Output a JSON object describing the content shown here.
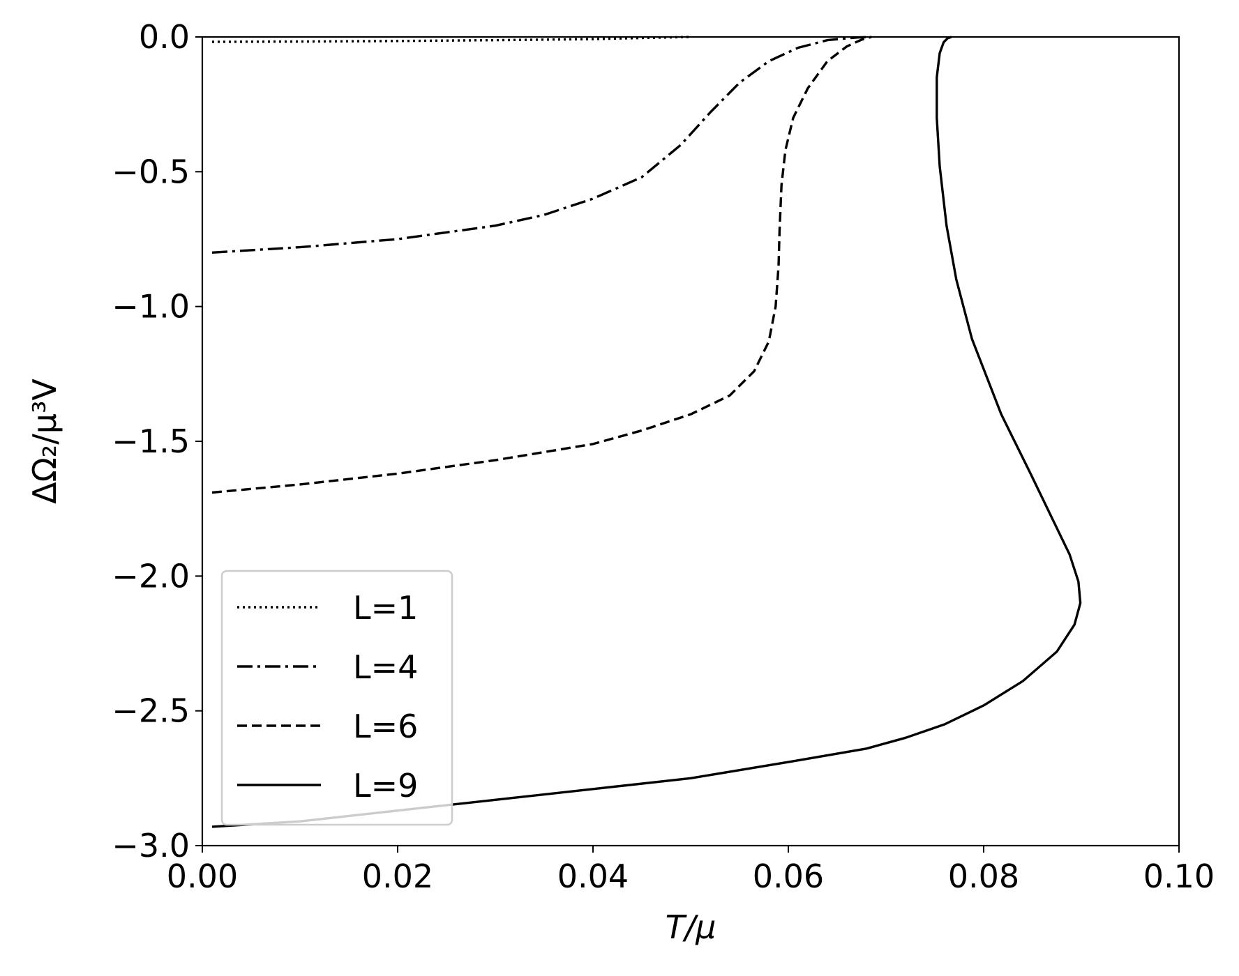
{
  "chart_data": {
    "type": "line",
    "xlabel": "T/μ",
    "ylabel": "ΔΩ₂/μ³V",
    "xlim": [
      0.0,
      0.1
    ],
    "ylim": [
      -3.0,
      0.0
    ],
    "xticks": [
      "0.00",
      "0.02",
      "0.04",
      "0.06",
      "0.08",
      "0.10"
    ],
    "yticks": [
      "0.0",
      "−0.5",
      "−1.0",
      "−1.5",
      "−2.0",
      "−2.5",
      "−3.0"
    ],
    "grid": false,
    "legend_position": "lower-left",
    "series": [
      {
        "name": "L=1",
        "style": "dotted",
        "color": "#000000",
        "x": [
          0.001,
          0.01,
          0.02,
          0.03,
          0.04,
          0.045,
          0.05
        ],
        "y": [
          -0.018,
          -0.017,
          -0.015,
          -0.012,
          -0.008,
          -0.004,
          0.0
        ]
      },
      {
        "name": "L=4",
        "style": "dashdot",
        "color": "#000000",
        "x": [
          0.001,
          0.01,
          0.02,
          0.03,
          0.035,
          0.04,
          0.045,
          0.049,
          0.052,
          0.055,
          0.058,
          0.061,
          0.064,
          0.067,
          0.0685
        ],
        "y": [
          -0.8,
          -0.78,
          -0.75,
          -0.7,
          -0.66,
          -0.6,
          -0.52,
          -0.4,
          -0.28,
          -0.17,
          -0.09,
          -0.04,
          -0.012,
          -0.002,
          0.0
        ]
      },
      {
        "name": "L=6",
        "style": "dashed",
        "color": "#000000",
        "x": [
          0.001,
          0.01,
          0.02,
          0.03,
          0.04,
          0.045,
          0.05,
          0.054,
          0.0565,
          0.058,
          0.0587,
          0.059,
          0.0591,
          0.0593,
          0.0597,
          0.0605,
          0.062,
          0.064,
          0.066,
          0.0675,
          0.0685
        ],
        "y": [
          -1.69,
          -1.66,
          -1.62,
          -1.57,
          -1.51,
          -1.46,
          -1.4,
          -1.33,
          -1.24,
          -1.13,
          -1.0,
          -0.85,
          -0.72,
          -0.55,
          -0.42,
          -0.3,
          -0.19,
          -0.09,
          -0.035,
          -0.01,
          0.0
        ]
      },
      {
        "name": "L=9",
        "style": "solid",
        "color": "#000000",
        "x": [
          0.001,
          0.01,
          0.02,
          0.03,
          0.04,
          0.05,
          0.06,
          0.068,
          0.072,
          0.076,
          0.08,
          0.084,
          0.0875,
          0.0893,
          0.0899,
          0.0897,
          0.0888,
          0.0872,
          0.0848,
          0.0818,
          0.0788,
          0.0772,
          0.0762,
          0.0755,
          0.0752,
          0.0752,
          0.0755,
          0.0759,
          0.0763,
          0.0767
        ],
        "y": [
          -2.93,
          -2.91,
          -2.87,
          -2.83,
          -2.79,
          -2.75,
          -2.69,
          -2.64,
          -2.6,
          -2.55,
          -2.48,
          -2.39,
          -2.28,
          -2.18,
          -2.1,
          -2.02,
          -1.92,
          -1.8,
          -1.62,
          -1.4,
          -1.12,
          -0.9,
          -0.7,
          -0.48,
          -0.3,
          -0.15,
          -0.06,
          -0.02,
          -0.005,
          0.0
        ]
      }
    ]
  }
}
